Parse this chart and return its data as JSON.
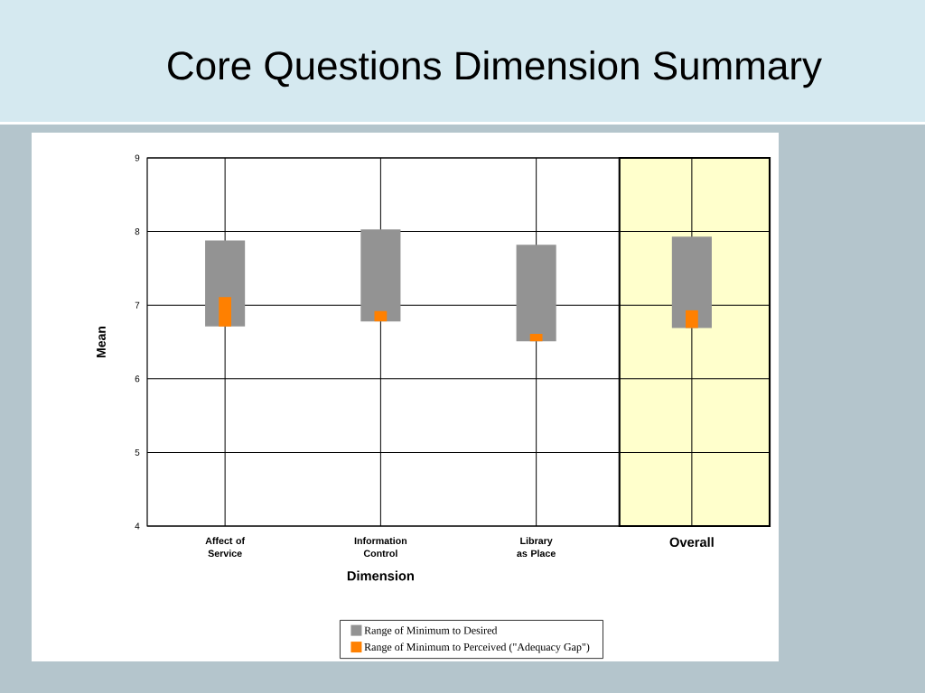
{
  "chart_data": {
    "type": "bar",
    "title": "Core Questions Dimension Summary",
    "xlabel": "Dimension",
    "ylabel": "Mean",
    "categories": [
      "Affect of Service",
      "Information Control",
      "Library as Place",
      "Overall"
    ],
    "series": [
      {
        "name": "Range of Minimum to Desired",
        "color": "#939393",
        "base": [
          6.71,
          6.78,
          6.51,
          6.69
        ],
        "values": [
          1.17,
          1.25,
          1.31,
          1.24
        ]
      },
      {
        "name": "Range of Minimum to Perceived (\"Adequacy Gap\")",
        "color": "#ff8000",
        "base": [
          6.71,
          6.78,
          6.51,
          6.69
        ],
        "values": [
          0.4,
          0.14,
          0.1,
          0.24
        ]
      }
    ],
    "ylim": [
      4,
      9
    ],
    "yticks": [
      4,
      5,
      6,
      7,
      8,
      9
    ],
    "grid": true,
    "legend": "bottom",
    "bands": [
      {
        "axis": "x",
        "from": "Overall",
        "to": "Overall",
        "color": "#ffffcc"
      }
    ]
  }
}
